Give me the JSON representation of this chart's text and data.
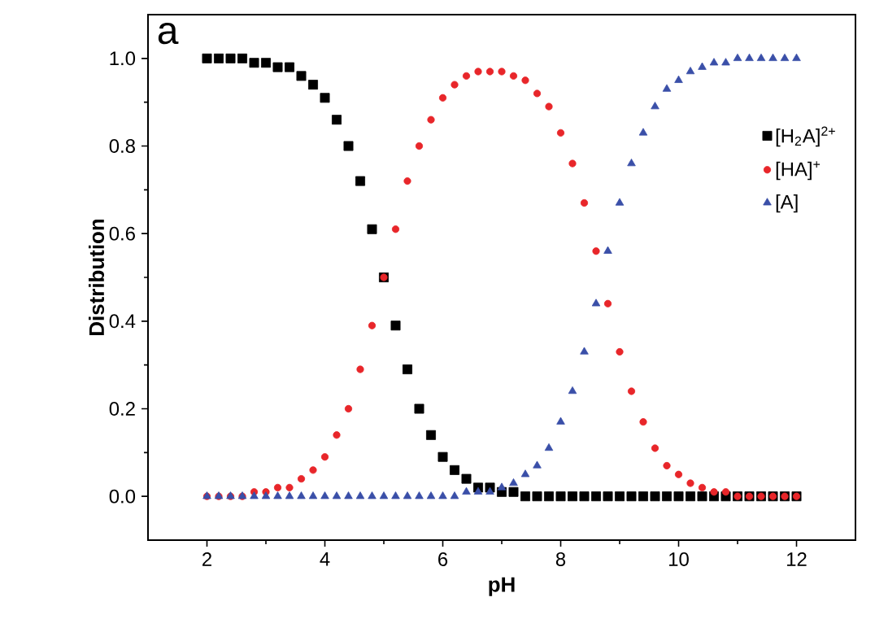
{
  "chart_data": {
    "type": "scatter",
    "xlabel": "pH",
    "ylabel": "Distribution",
    "annotations": [
      "a"
    ],
    "x": [
      2.0,
      2.2,
      2.4,
      2.6,
      2.8,
      3.0,
      3.2,
      3.4,
      3.6,
      3.8,
      4.0,
      4.2,
      4.4,
      4.6,
      4.8,
      5.0,
      5.2,
      5.4,
      5.6,
      5.8,
      6.0,
      6.2,
      6.4,
      6.6,
      6.8,
      7.0,
      7.2,
      7.4,
      7.6,
      7.8,
      8.0,
      8.2,
      8.4,
      8.6,
      8.8,
      9.0,
      9.2,
      9.4,
      9.6,
      9.8,
      10.0,
      10.2,
      10.4,
      10.6,
      10.8,
      11.0,
      11.2,
      11.4,
      11.6,
      11.8,
      12.0
    ],
    "series": [
      {
        "name": "[H$_{2}$A]$^{2+}$",
        "color": "#000000",
        "marker": "square",
        "values": [
          1.0,
          1.0,
          1.0,
          1.0,
          0.99,
          0.99,
          0.98,
          0.98,
          0.96,
          0.94,
          0.91,
          0.86,
          0.8,
          0.72,
          0.61,
          0.5,
          0.39,
          0.29,
          0.2,
          0.14,
          0.09,
          0.06,
          0.04,
          0.02,
          0.02,
          0.01,
          0.01,
          0.0,
          0.0,
          0.0,
          0.0,
          0.0,
          0.0,
          0.0,
          0.0,
          0.0,
          0.0,
          0.0,
          0.0,
          0.0,
          0.0,
          0.0,
          0.0,
          0.0,
          0.0,
          0.0,
          0.0,
          0.0,
          0.0,
          0.0,
          0.0
        ]
      },
      {
        "name": "[HA]$^{+}$",
        "color": "#e8262a",
        "marker": "circle",
        "values": [
          0.0,
          0.0,
          0.0,
          0.0,
          0.01,
          0.01,
          0.02,
          0.02,
          0.04,
          0.06,
          0.09,
          0.14,
          0.2,
          0.29,
          0.39,
          0.5,
          0.61,
          0.72,
          0.8,
          0.86,
          0.91,
          0.94,
          0.96,
          0.97,
          0.97,
          0.97,
          0.96,
          0.95,
          0.92,
          0.89,
          0.83,
          0.76,
          0.67,
          0.56,
          0.44,
          0.33,
          0.24,
          0.17,
          0.11,
          0.07,
          0.05,
          0.03,
          0.02,
          0.01,
          0.01,
          0.0,
          0.0,
          0.0,
          0.0,
          0.0,
          0.0
        ]
      },
      {
        "name": "[A]",
        "color": "#3a4fa8",
        "marker": "triangle",
        "values": [
          0.0,
          0.0,
          0.0,
          0.0,
          0.0,
          0.0,
          0.0,
          0.0,
          0.0,
          0.0,
          0.0,
          0.0,
          0.0,
          0.0,
          0.0,
          0.0,
          0.0,
          0.0,
          0.0,
          0.0,
          0.0,
          0.0,
          0.01,
          0.01,
          0.01,
          0.02,
          0.03,
          0.05,
          0.07,
          0.11,
          0.17,
          0.24,
          0.33,
          0.44,
          0.56,
          0.67,
          0.76,
          0.83,
          0.89,
          0.93,
          0.95,
          0.97,
          0.98,
          0.99,
          0.99,
          1.0,
          1.0,
          1.0,
          1.0,
          1.0,
          1.0
        ]
      }
    ],
    "xlim": [
      1,
      13
    ],
    "ylim": [
      -0.1,
      1.1
    ],
    "xticks": [
      2,
      4,
      6,
      8,
      10,
      12
    ],
    "yticks": [
      {
        "value": 0,
        "label": "0.0"
      },
      {
        "value": 0.2,
        "label": "0.2"
      },
      {
        "value": 0.4,
        "label": "0.4"
      },
      {
        "value": 0.6,
        "label": "0.6"
      },
      {
        "value": 0.8,
        "label": "0.8"
      },
      {
        "value": 1.0,
        "label": "1.0"
      }
    ],
    "grid": false,
    "legend": "right"
  }
}
